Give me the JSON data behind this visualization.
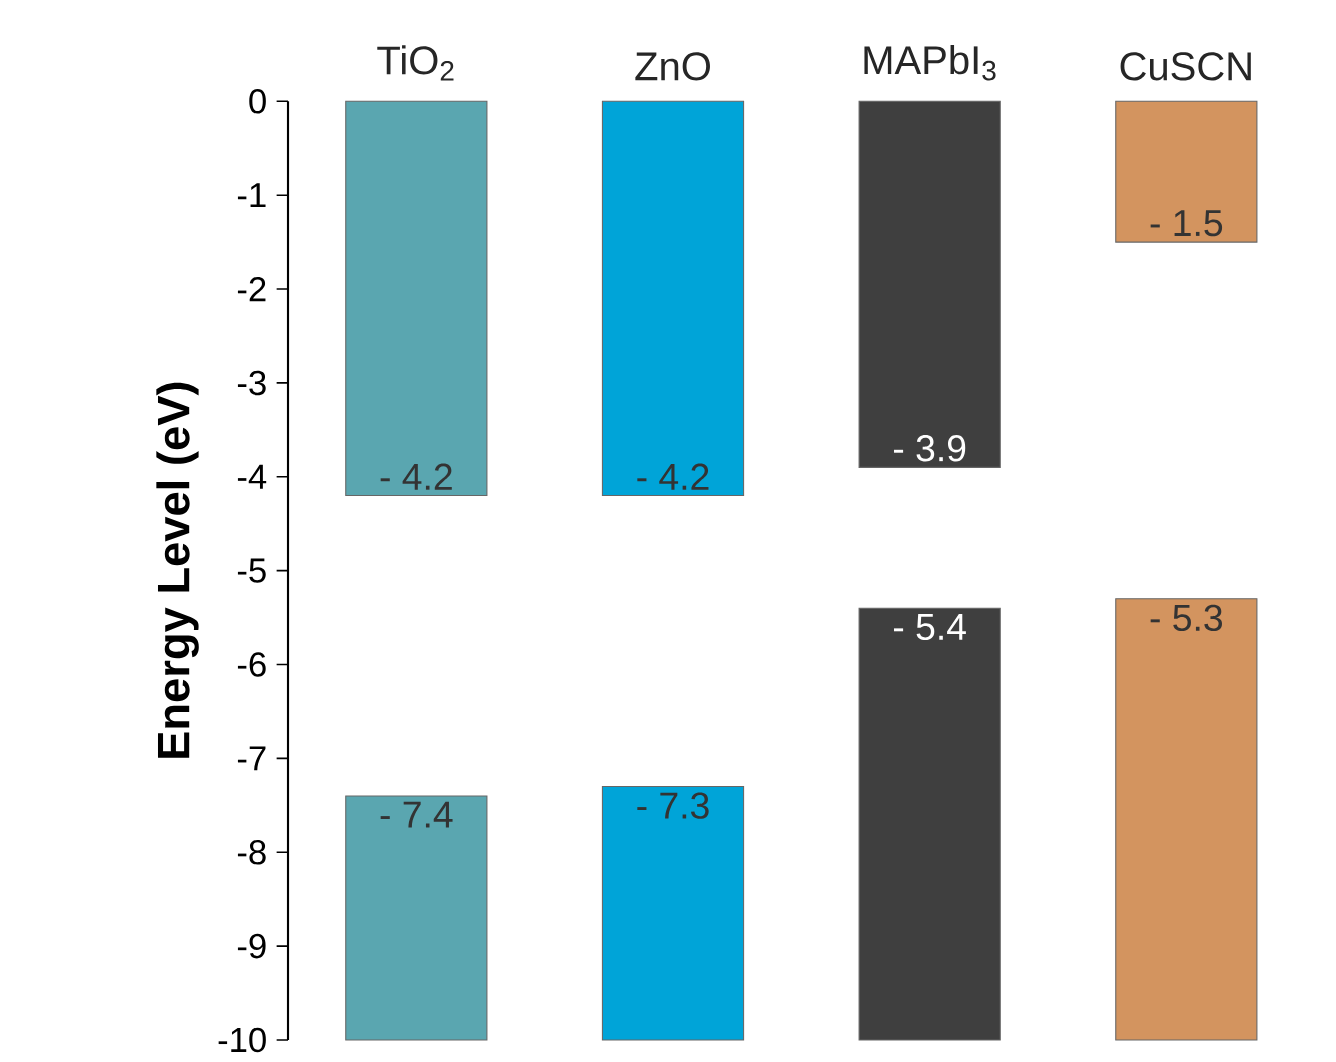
{
  "chart_data": {
    "type": "bar",
    "ylabel": "Energy Level (eV)",
    "categories": [
      "TiO$_{2}$",
      "ZnO",
      "MAPbI$_{3}$",
      "CuSCN"
    ],
    "series": [
      {
        "colors": [
          "#5aa6b0",
          "#00a4d8",
          "#3f3f3f",
          "#d3945f"
        ],
        "base": [
          0,
          0,
          0,
          0
        ],
        "values": [
          -4.2,
          -4.2,
          -3.9,
          -1.5
        ],
        "value_labels": [
          "- 4.2",
          "- 4.2",
          "- 3.9",
          "- 1.5"
        ]
      },
      {
        "colors": [
          "#5aa6b0",
          "#00a4d8",
          "#3f3f3f",
          "#d3945f"
        ],
        "base": [
          -10,
          -10,
          -10,
          -10
        ],
        "values": [
          2.6,
          2.7,
          4.6,
          4.7
        ],
        "value_labels": [
          "- 7.4",
          "- 7.3",
          "- 5.4",
          "- 5.3"
        ]
      }
    ],
    "ylim": [
      -10,
      0
    ],
    "yticks": [
      0,
      -1,
      -2,
      -3,
      -4,
      -5,
      -6,
      -7,
      -8,
      -9,
      -10
    ]
  }
}
